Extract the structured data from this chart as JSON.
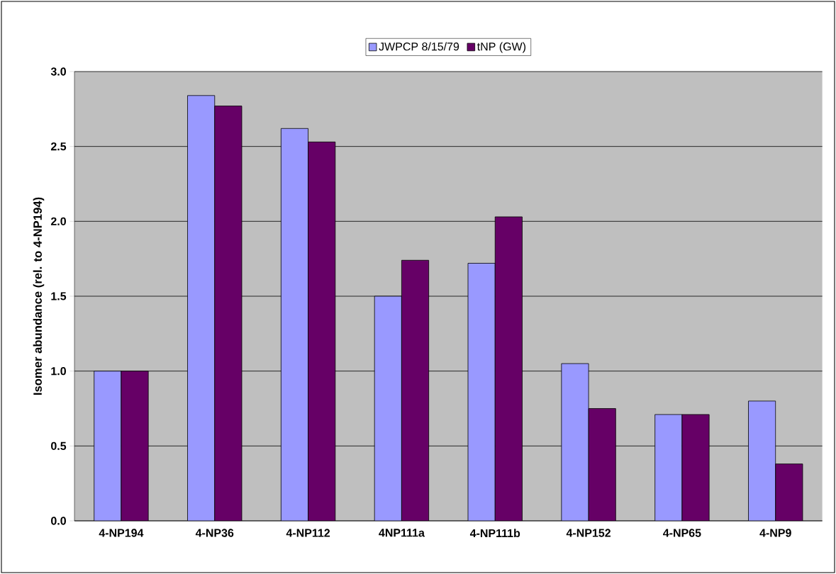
{
  "chart_data": {
    "type": "bar",
    "ylabel": "Isomer abundance (rel. to 4-NP194)",
    "categories": [
      "4-NP194",
      "4-NP36",
      "4-NP112",
      "4NP111a",
      "4-NP111b",
      "4-NP152",
      "4-NP65",
      "4-NP9"
    ],
    "series": [
      {
        "name": "JWPCP 8/15/79",
        "color": "#9999ff",
        "values": [
          1.0,
          2.84,
          2.62,
          1.5,
          1.72,
          1.05,
          0.71,
          0.8
        ]
      },
      {
        "name": "tNP (GW)",
        "color": "#660066",
        "values": [
          1.0,
          2.77,
          2.53,
          1.74,
          2.03,
          0.75,
          0.71,
          0.38
        ]
      }
    ],
    "ylim": [
      0,
      3
    ],
    "yticks": [
      {
        "value": 0,
        "label": "0.0"
      },
      {
        "value": 0.5,
        "label": "0.5"
      },
      {
        "value": 1,
        "label": "1.0"
      },
      {
        "value": 1.5,
        "label": "1.5"
      },
      {
        "value": 2,
        "label": "2.0"
      },
      {
        "value": 2.5,
        "label": "2.5"
      },
      {
        "value": 3,
        "label": "3.0"
      }
    ],
    "grid": "y",
    "legend": "top"
  }
}
